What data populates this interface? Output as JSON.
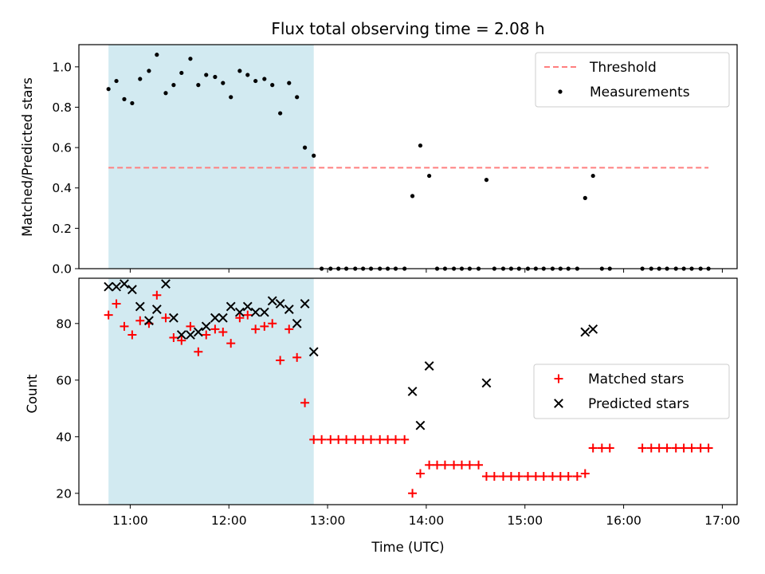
{
  "chart_data": {
    "title": "Flux total observing time = 2.08 h",
    "xlabel": "Time (UTC)",
    "x_ticks": [
      "11:00",
      "12:00",
      "13:00",
      "14:00",
      "15:00",
      "16:00",
      "17:00"
    ],
    "x_tick_values": [
      11.0,
      12.0,
      13.0,
      14.0,
      15.0,
      16.0,
      17.0
    ],
    "xlim": [
      10.48,
      17.15
    ],
    "observing_window": [
      10.78,
      12.86
    ],
    "colors": {
      "window": "#add8e6",
      "threshold": "#ff7f7f",
      "measurement": "#000000",
      "matched": "#ff0000",
      "predicted": "#000000"
    },
    "panels": [
      {
        "type": "scatter",
        "ylabel": "Matched/Predicted stars",
        "ylim": [
          0.0,
          1.11
        ],
        "y_ticks": [
          "0.0",
          "0.2",
          "0.4",
          "0.6",
          "0.8",
          "1.0"
        ],
        "y_tick_values": [
          0.0,
          0.2,
          0.4,
          0.6,
          0.8,
          1.0
        ],
        "legend_position": "top-right",
        "threshold": {
          "name": "Threshold",
          "y": 0.5,
          "x_range": [
            10.78,
            16.86
          ]
        },
        "series": [
          {
            "name": "Measurements",
            "marker": "dot",
            "points": [
              [
                10.78,
                0.89
              ],
              [
                10.86,
                0.93
              ],
              [
                10.94,
                0.84
              ],
              [
                11.02,
                0.82
              ],
              [
                11.1,
                0.94
              ],
              [
                11.19,
                0.98
              ],
              [
                11.27,
                1.06
              ],
              [
                11.36,
                0.87
              ],
              [
                11.44,
                0.91
              ],
              [
                11.52,
                0.97
              ],
              [
                11.61,
                1.04
              ],
              [
                11.69,
                0.91
              ],
              [
                11.77,
                0.96
              ],
              [
                11.86,
                0.95
              ],
              [
                11.94,
                0.92
              ],
              [
                12.02,
                0.85
              ],
              [
                12.11,
                0.98
              ],
              [
                12.19,
                0.96
              ],
              [
                12.27,
                0.93
              ],
              [
                12.36,
                0.94
              ],
              [
                12.44,
                0.91
              ],
              [
                12.52,
                0.77
              ],
              [
                12.61,
                0.92
              ],
              [
                12.69,
                0.85
              ],
              [
                12.77,
                0.6
              ],
              [
                12.86,
                0.56
              ],
              [
                12.94,
                0.0
              ],
              [
                13.03,
                0.0
              ],
              [
                13.11,
                0.0
              ],
              [
                13.19,
                0.0
              ],
              [
                13.28,
                0.0
              ],
              [
                13.36,
                0.0
              ],
              [
                13.44,
                0.0
              ],
              [
                13.53,
                0.0
              ],
              [
                13.61,
                0.0
              ],
              [
                13.69,
                0.0
              ],
              [
                13.78,
                0.0
              ],
              [
                13.86,
                0.36
              ],
              [
                13.94,
                0.61
              ],
              [
                14.03,
                0.46
              ],
              [
                14.11,
                0.0
              ],
              [
                14.19,
                0.0
              ],
              [
                14.28,
                0.0
              ],
              [
                14.36,
                0.0
              ],
              [
                14.44,
                0.0
              ],
              [
                14.53,
                0.0
              ],
              [
                14.61,
                0.44
              ],
              [
                14.69,
                0.0
              ],
              [
                14.78,
                0.0
              ],
              [
                14.86,
                0.0
              ],
              [
                14.94,
                0.0
              ],
              [
                15.03,
                0.0
              ],
              [
                15.11,
                0.0
              ],
              [
                15.19,
                0.0
              ],
              [
                15.28,
                0.0
              ],
              [
                15.36,
                0.0
              ],
              [
                15.44,
                0.0
              ],
              [
                15.53,
                0.0
              ],
              [
                15.61,
                0.35
              ],
              [
                15.69,
                0.46
              ],
              [
                15.78,
                0.0
              ],
              [
                15.86,
                0.0
              ],
              [
                16.19,
                0.0
              ],
              [
                16.28,
                0.0
              ],
              [
                16.36,
                0.0
              ],
              [
                16.44,
                0.0
              ],
              [
                16.53,
                0.0
              ],
              [
                16.61,
                0.0
              ],
              [
                16.69,
                0.0
              ],
              [
                16.78,
                0.0
              ],
              [
                16.86,
                0.0
              ]
            ]
          }
        ]
      },
      {
        "type": "scatter",
        "ylabel": "Count",
        "ylim": [
          16.0,
          96.0
        ],
        "y_ticks": [
          "20",
          "40",
          "60",
          "80"
        ],
        "y_tick_values": [
          20,
          40,
          60,
          80
        ],
        "legend_position": "center-right",
        "series": [
          {
            "name": "Matched stars",
            "marker": "plus",
            "points": [
              [
                10.78,
                83
              ],
              [
                10.86,
                87
              ],
              [
                10.94,
                79
              ],
              [
                11.02,
                76
              ],
              [
                11.1,
                81
              ],
              [
                11.19,
                80
              ],
              [
                11.27,
                90
              ],
              [
                11.36,
                82
              ],
              [
                11.44,
                75
              ],
              [
                11.52,
                74
              ],
              [
                11.61,
                79
              ],
              [
                11.69,
                70
              ],
              [
                11.77,
                76
              ],
              [
                11.86,
                78
              ],
              [
                11.94,
                77
              ],
              [
                12.02,
                73
              ],
              [
                12.11,
                82
              ],
              [
                12.19,
                83
              ],
              [
                12.27,
                78
              ],
              [
                12.36,
                79
              ],
              [
                12.44,
                80
              ],
              [
                12.52,
                67
              ],
              [
                12.61,
                78
              ],
              [
                12.69,
                68
              ],
              [
                12.77,
                52
              ],
              [
                12.86,
                39
              ],
              [
                12.94,
                39
              ],
              [
                13.03,
                39
              ],
              [
                13.11,
                39
              ],
              [
                13.19,
                39
              ],
              [
                13.28,
                39
              ],
              [
                13.36,
                39
              ],
              [
                13.44,
                39
              ],
              [
                13.53,
                39
              ],
              [
                13.61,
                39
              ],
              [
                13.69,
                39
              ],
              [
                13.78,
                39
              ],
              [
                13.86,
                20
              ],
              [
                13.94,
                27
              ],
              [
                14.03,
                30
              ],
              [
                14.11,
                30
              ],
              [
                14.19,
                30
              ],
              [
                14.28,
                30
              ],
              [
                14.36,
                30
              ],
              [
                14.44,
                30
              ],
              [
                14.53,
                30
              ],
              [
                14.61,
                26
              ],
              [
                14.69,
                26
              ],
              [
                14.78,
                26
              ],
              [
                14.86,
                26
              ],
              [
                14.94,
                26
              ],
              [
                15.03,
                26
              ],
              [
                15.11,
                26
              ],
              [
                15.19,
                26
              ],
              [
                15.28,
                26
              ],
              [
                15.36,
                26
              ],
              [
                15.44,
                26
              ],
              [
                15.53,
                26
              ],
              [
                15.61,
                27
              ],
              [
                15.69,
                36
              ],
              [
                15.78,
                36
              ],
              [
                15.86,
                36
              ],
              [
                16.19,
                36
              ],
              [
                16.28,
                36
              ],
              [
                16.36,
                36
              ],
              [
                16.44,
                36
              ],
              [
                16.53,
                36
              ],
              [
                16.61,
                36
              ],
              [
                16.69,
                36
              ],
              [
                16.78,
                36
              ],
              [
                16.86,
                36
              ]
            ]
          },
          {
            "name": "Predicted stars",
            "marker": "x",
            "points": [
              [
                10.78,
                93
              ],
              [
                10.86,
                93
              ],
              [
                10.94,
                94
              ],
              [
                11.02,
                92
              ],
              [
                11.1,
                86
              ],
              [
                11.19,
                81
              ],
              [
                11.27,
                85
              ],
              [
                11.36,
                94
              ],
              [
                11.44,
                82
              ],
              [
                11.52,
                76
              ],
              [
                11.61,
                76
              ],
              [
                11.69,
                77
              ],
              [
                11.77,
                79
              ],
              [
                11.86,
                82
              ],
              [
                11.94,
                82
              ],
              [
                12.02,
                86
              ],
              [
                12.11,
                84
              ],
              [
                12.19,
                86
              ],
              [
                12.27,
                84
              ],
              [
                12.36,
                84
              ],
              [
                12.44,
                88
              ],
              [
                12.52,
                87
              ],
              [
                12.61,
                85
              ],
              [
                12.69,
                80
              ],
              [
                12.77,
                87
              ],
              [
                12.86,
                70
              ],
              [
                13.86,
                56
              ],
              [
                13.94,
                44
              ],
              [
                14.03,
                65
              ],
              [
                14.61,
                59
              ],
              [
                15.61,
                77
              ],
              [
                15.69,
                78
              ]
            ]
          }
        ]
      }
    ]
  }
}
